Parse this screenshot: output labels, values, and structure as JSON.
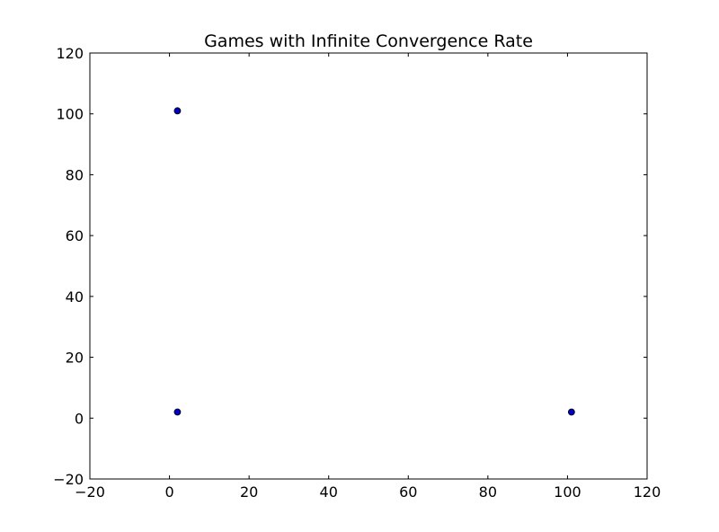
{
  "chart_data": {
    "type": "scatter",
    "title": "Games with Infinite Convergence Rate",
    "xlabel": "",
    "ylabel": "",
    "xlim": [
      -20,
      120
    ],
    "ylim": [
      -20,
      120
    ],
    "xticks": [
      -20,
      0,
      20,
      40,
      60,
      80,
      100,
      120
    ],
    "yticks": [
      -20,
      0,
      20,
      40,
      60,
      80,
      100,
      120
    ],
    "xtick_labels": [
      "−20",
      "0",
      "20",
      "40",
      "60",
      "80",
      "100",
      "120"
    ],
    "ytick_labels": [
      "−20",
      "0",
      "20",
      "40",
      "60",
      "80",
      "100",
      "120"
    ],
    "grid": false,
    "legend": false,
    "series": [
      {
        "color": "#0000bf",
        "points": [
          {
            "x": 2,
            "y": 101
          },
          {
            "x": 2,
            "y": 2
          },
          {
            "x": 101,
            "y": 2
          }
        ]
      }
    ]
  }
}
